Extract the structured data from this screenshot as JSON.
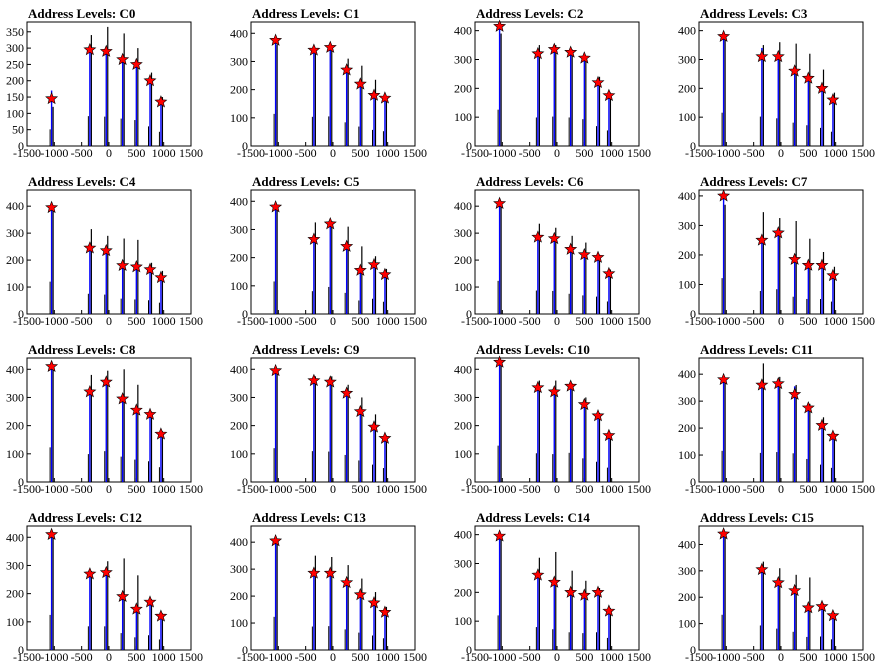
{
  "chart_data": [
    {
      "title": "Address Levels: C0",
      "type": "bar",
      "xlim": [
        -1500,
        1500
      ],
      "ylim": [
        0,
        380
      ],
      "xticks": [
        "-1500",
        "-1000",
        "-500",
        "0",
        "500",
        "1000",
        "1500"
      ],
      "yticks": [
        0,
        50,
        100,
        150,
        200,
        250,
        300,
        350
      ],
      "peaks": [
        {
          "x": -1050,
          "blue": 170,
          "black": 120,
          "marker": 145
        },
        {
          "x": -350,
          "blue": 305,
          "black": 340,
          "marker": 295
        },
        {
          "x": -50,
          "blue": 300,
          "black": 365,
          "marker": 290
        },
        {
          "x": 250,
          "blue": 280,
          "black": 345,
          "marker": 265
        },
        {
          "x": 500,
          "blue": 265,
          "black": 300,
          "marker": 250
        },
        {
          "x": 750,
          "blue": 200,
          "black": 225,
          "marker": 200
        },
        {
          "x": 950,
          "blue": 145,
          "black": 150,
          "marker": 135
        }
      ]
    },
    {
      "title": "Address Levels: C1",
      "type": "bar",
      "xlim": [
        -1500,
        1500
      ],
      "ylim": [
        0,
        440
      ],
      "xticks": [
        "-1500",
        "-1000",
        "-500",
        "0",
        "500",
        "1000",
        "1500"
      ],
      "yticks": [
        0,
        100,
        200,
        300,
        400
      ],
      "peaks": [
        {
          "x": -1050,
          "blue": 380,
          "black": 360,
          "marker": 375
        },
        {
          "x": -350,
          "blue": 345,
          "black": 330,
          "marker": 340
        },
        {
          "x": -50,
          "blue": 350,
          "black": 340,
          "marker": 350
        },
        {
          "x": 250,
          "blue": 280,
          "black": 310,
          "marker": 270
        },
        {
          "x": 500,
          "blue": 230,
          "black": 285,
          "marker": 220
        },
        {
          "x": 750,
          "blue": 190,
          "black": 235,
          "marker": 180
        },
        {
          "x": 950,
          "blue": 175,
          "black": 175,
          "marker": 170
        }
      ]
    },
    {
      "title": "Address Levels: C2",
      "type": "bar",
      "xlim": [
        -1500,
        1500
      ],
      "ylim": [
        0,
        430
      ],
      "xticks": [
        "-1500",
        "-1000",
        "-500",
        "0",
        "500",
        "1000",
        "1500"
      ],
      "yticks": [
        0,
        100,
        200,
        300,
        400
      ],
      "peaks": [
        {
          "x": -1050,
          "blue": 420,
          "black": 390,
          "marker": 415
        },
        {
          "x": -350,
          "blue": 330,
          "black": 350,
          "marker": 320
        },
        {
          "x": -50,
          "blue": 340,
          "black": 350,
          "marker": 335
        },
        {
          "x": 250,
          "blue": 330,
          "black": 335,
          "marker": 325
        },
        {
          "x": 500,
          "blue": 310,
          "black": 300,
          "marker": 305
        },
        {
          "x": 750,
          "blue": 230,
          "black": 240,
          "marker": 220
        },
        {
          "x": 950,
          "blue": 180,
          "black": 185,
          "marker": 175
        }
      ]
    },
    {
      "title": "Address Levels: C3",
      "type": "bar",
      "xlim": [
        -1500,
        1500
      ],
      "ylim": [
        0,
        430
      ],
      "xticks": [
        "-1500",
        "-1000",
        "-500",
        "0",
        "500",
        "1000",
        "1500"
      ],
      "yticks": [
        0,
        100,
        200,
        300,
        400
      ],
      "peaks": [
        {
          "x": -1050,
          "blue": 385,
          "black": 380,
          "marker": 380
        },
        {
          "x": -350,
          "blue": 340,
          "black": 350,
          "marker": 310
        },
        {
          "x": -50,
          "blue": 320,
          "black": 360,
          "marker": 310
        },
        {
          "x": 250,
          "blue": 270,
          "black": 355,
          "marker": 260
        },
        {
          "x": 500,
          "blue": 240,
          "black": 320,
          "marker": 235
        },
        {
          "x": 750,
          "blue": 210,
          "black": 265,
          "marker": 200
        },
        {
          "x": 950,
          "blue": 165,
          "black": 185,
          "marker": 160
        }
      ]
    },
    {
      "title": "Address Levels: C4",
      "type": "bar",
      "xlim": [
        -1500,
        1500
      ],
      "ylim": [
        0,
        460
      ],
      "xticks": [
        "-1500",
        "-1000",
        "-500",
        "0",
        "500",
        "1000",
        "1500"
      ],
      "yticks": [
        0,
        100,
        200,
        300,
        400
      ],
      "peaks": [
        {
          "x": -1050,
          "blue": 400,
          "black": 395,
          "marker": 395
        },
        {
          "x": -350,
          "blue": 250,
          "black": 315,
          "marker": 245
        },
        {
          "x": -50,
          "blue": 240,
          "black": 290,
          "marker": 235
        },
        {
          "x": 250,
          "blue": 190,
          "black": 280,
          "marker": 180
        },
        {
          "x": 500,
          "blue": 180,
          "black": 275,
          "marker": 175
        },
        {
          "x": 750,
          "blue": 170,
          "black": 190,
          "marker": 165
        },
        {
          "x": 950,
          "blue": 140,
          "black": 160,
          "marker": 135
        }
      ]
    },
    {
      "title": "Address Levels: C5",
      "type": "bar",
      "xlim": [
        -1500,
        1500
      ],
      "ylim": [
        0,
        440
      ],
      "xticks": [
        "-1500",
        "-1000",
        "-500",
        "0",
        "500",
        "1000",
        "1500"
      ],
      "yticks": [
        0,
        100,
        200,
        300,
        400
      ],
      "peaks": [
        {
          "x": -1050,
          "blue": 385,
          "black": 370,
          "marker": 380
        },
        {
          "x": -350,
          "blue": 270,
          "black": 325,
          "marker": 265
        },
        {
          "x": -50,
          "blue": 320,
          "black": 330,
          "marker": 320
        },
        {
          "x": 250,
          "blue": 250,
          "black": 310,
          "marker": 240
        },
        {
          "x": 500,
          "blue": 160,
          "black": 240,
          "marker": 155
        },
        {
          "x": 750,
          "blue": 180,
          "black": 205,
          "marker": 175
        },
        {
          "x": 950,
          "blue": 145,
          "black": 160,
          "marker": 140
        }
      ]
    },
    {
      "title": "Address Levels: C6",
      "type": "bar",
      "xlim": [
        -1500,
        1500
      ],
      "ylim": [
        0,
        460
      ],
      "xticks": [
        "-1500",
        "-1000",
        "-500",
        "0",
        "500",
        "1000",
        "1500"
      ],
      "yticks": [
        0,
        100,
        200,
        300,
        400
      ],
      "peaks": [
        {
          "x": -1050,
          "blue": 410,
          "black": 400,
          "marker": 410
        },
        {
          "x": -350,
          "blue": 290,
          "black": 335,
          "marker": 285
        },
        {
          "x": -50,
          "blue": 285,
          "black": 320,
          "marker": 280
        },
        {
          "x": 250,
          "blue": 250,
          "black": 290,
          "marker": 240
        },
        {
          "x": 500,
          "blue": 230,
          "black": 265,
          "marker": 220
        },
        {
          "x": 750,
          "blue": 215,
          "black": 220,
          "marker": 210
        },
        {
          "x": 950,
          "blue": 155,
          "black": 165,
          "marker": 150
        }
      ]
    },
    {
      "title": "Address Levels: C7",
      "type": "bar",
      "xlim": [
        -1500,
        1500
      ],
      "ylim": [
        0,
        420
      ],
      "xticks": [
        "-1500",
        "-1000",
        "-500",
        "0",
        "500",
        "1000",
        "1500"
      ],
      "yticks": [
        0,
        100,
        200,
        300,
        400
      ],
      "peaks": [
        {
          "x": -1050,
          "blue": 405,
          "black": 370,
          "marker": 400
        },
        {
          "x": -350,
          "blue": 260,
          "black": 345,
          "marker": 250
        },
        {
          "x": -50,
          "blue": 280,
          "black": 325,
          "marker": 275
        },
        {
          "x": 250,
          "blue": 195,
          "black": 315,
          "marker": 185
        },
        {
          "x": 500,
          "blue": 170,
          "black": 255,
          "marker": 165
        },
        {
          "x": 750,
          "blue": 170,
          "black": 210,
          "marker": 165
        },
        {
          "x": 950,
          "blue": 140,
          "black": 160,
          "marker": 130
        }
      ]
    },
    {
      "title": "Address Levels: C8",
      "type": "bar",
      "xlim": [
        -1500,
        1500
      ],
      "ylim": [
        0,
        440
      ],
      "xticks": [
        "-1500",
        "-1000",
        "-500",
        "0",
        "500",
        "1000",
        "1500"
      ],
      "yticks": [
        0,
        100,
        200,
        300,
        400
      ],
      "peaks": [
        {
          "x": -1050,
          "blue": 410,
          "black": 400,
          "marker": 410
        },
        {
          "x": -350,
          "blue": 330,
          "black": 380,
          "marker": 320
        },
        {
          "x": -50,
          "blue": 365,
          "black": 395,
          "marker": 355
        },
        {
          "x": 250,
          "blue": 300,
          "black": 400,
          "marker": 295
        },
        {
          "x": 500,
          "blue": 265,
          "black": 345,
          "marker": 255
        },
        {
          "x": 750,
          "blue": 245,
          "black": 250,
          "marker": 240
        },
        {
          "x": 950,
          "blue": 175,
          "black": 180,
          "marker": 170
        }
      ]
    },
    {
      "title": "Address Levels: C9",
      "type": "bar",
      "xlim": [
        -1500,
        1500
      ],
      "ylim": [
        0,
        440
      ],
      "xticks": [
        "-1500",
        "-1000",
        "-500",
        "0",
        "500",
        "1000",
        "1500"
      ],
      "yticks": [
        0,
        100,
        200,
        300,
        400
      ],
      "peaks": [
        {
          "x": -1050,
          "blue": 400,
          "black": 390,
          "marker": 395
        },
        {
          "x": -350,
          "blue": 365,
          "black": 375,
          "marker": 360
        },
        {
          "x": -50,
          "blue": 360,
          "black": 375,
          "marker": 355
        },
        {
          "x": 250,
          "blue": 320,
          "black": 345,
          "marker": 315
        },
        {
          "x": 500,
          "blue": 255,
          "black": 300,
          "marker": 250
        },
        {
          "x": 750,
          "blue": 205,
          "black": 240,
          "marker": 195
        },
        {
          "x": 950,
          "blue": 165,
          "black": 165,
          "marker": 155
        }
      ]
    },
    {
      "title": "Address Levels: C10",
      "type": "bar",
      "xlim": [
        -1500,
        1500
      ],
      "ylim": [
        0,
        440
      ],
      "xticks": [
        "-1500",
        "-1000",
        "-500",
        "0",
        "500",
        "1000",
        "1500"
      ],
      "yticks": [
        0,
        100,
        200,
        300,
        400
      ],
      "peaks": [
        {
          "x": -1050,
          "blue": 430,
          "black": 420,
          "marker": 425
        },
        {
          "x": -350,
          "blue": 340,
          "black": 360,
          "marker": 335
        },
        {
          "x": -50,
          "blue": 330,
          "black": 360,
          "marker": 320
        },
        {
          "x": 250,
          "blue": 345,
          "black": 350,
          "marker": 340
        },
        {
          "x": 500,
          "blue": 280,
          "black": 300,
          "marker": 275
        },
        {
          "x": 750,
          "blue": 240,
          "black": 245,
          "marker": 235
        },
        {
          "x": 950,
          "blue": 170,
          "black": 170,
          "marker": 165
        }
      ]
    },
    {
      "title": "Address Levels: C11",
      "type": "bar",
      "xlim": [
        -1500,
        1500
      ],
      "ylim": [
        0,
        460
      ],
      "xticks": [
        "-1500",
        "-1000",
        "-500",
        "0",
        "500",
        "1000",
        "1500"
      ],
      "yticks": [
        0,
        100,
        200,
        300,
        400
      ],
      "peaks": [
        {
          "x": -1050,
          "blue": 385,
          "black": 380,
          "marker": 380
        },
        {
          "x": -350,
          "blue": 360,
          "black": 440,
          "marker": 360
        },
        {
          "x": -50,
          "blue": 370,
          "black": 390,
          "marker": 365
        },
        {
          "x": 250,
          "blue": 355,
          "black": 360,
          "marker": 325
        },
        {
          "x": 500,
          "blue": 285,
          "black": 290,
          "marker": 275
        },
        {
          "x": 750,
          "blue": 215,
          "black": 240,
          "marker": 210
        },
        {
          "x": 950,
          "blue": 175,
          "black": 180,
          "marker": 170
        }
      ]
    },
    {
      "title": "Address Levels: C12",
      "type": "bar",
      "xlim": [
        -1500,
        1500
      ],
      "ylim": [
        0,
        440
      ],
      "xticks": [
        "-1500",
        "-1000",
        "-500",
        "0",
        "500",
        "1000",
        "1500"
      ],
      "yticks": [
        0,
        100,
        200,
        300,
        400
      ],
      "peaks": [
        {
          "x": -1050,
          "blue": 415,
          "black": 405,
          "marker": 410
        },
        {
          "x": -350,
          "blue": 280,
          "black": 280,
          "marker": 270
        },
        {
          "x": -50,
          "blue": 280,
          "black": 315,
          "marker": 275
        },
        {
          "x": 250,
          "blue": 200,
          "black": 325,
          "marker": 190
        },
        {
          "x": 500,
          "blue": 150,
          "black": 265,
          "marker": 145
        },
        {
          "x": 750,
          "blue": 175,
          "black": 180,
          "marker": 170
        },
        {
          "x": 950,
          "blue": 125,
          "black": 130,
          "marker": 120
        }
      ]
    },
    {
      "title": "Address Levels: C13",
      "type": "bar",
      "xlim": [
        -1500,
        1500
      ],
      "ylim": [
        0,
        460
      ],
      "xticks": [
        "-1500",
        "-1000",
        "-500",
        "0",
        "500",
        "1000",
        "1500"
      ],
      "yticks": [
        0,
        100,
        200,
        300,
        400
      ],
      "peaks": [
        {
          "x": -1050,
          "blue": 410,
          "black": 400,
          "marker": 405
        },
        {
          "x": -350,
          "blue": 290,
          "black": 350,
          "marker": 285
        },
        {
          "x": -50,
          "blue": 295,
          "black": 345,
          "marker": 285
        },
        {
          "x": 250,
          "blue": 255,
          "black": 315,
          "marker": 250
        },
        {
          "x": 500,
          "blue": 215,
          "black": 265,
          "marker": 205
        },
        {
          "x": 750,
          "blue": 180,
          "black": 215,
          "marker": 175
        },
        {
          "x": 950,
          "blue": 145,
          "black": 160,
          "marker": 140
        }
      ]
    },
    {
      "title": "Address Levels: C14",
      "type": "bar",
      "xlim": [
        -1500,
        1500
      ],
      "ylim": [
        0,
        430
      ],
      "xticks": [
        "-1500",
        "-1000",
        "-500",
        "0",
        "500",
        "1000",
        "1500"
      ],
      "yticks": [
        0,
        100,
        200,
        300,
        400
      ],
      "peaks": [
        {
          "x": -1050,
          "blue": 400,
          "black": 395,
          "marker": 395
        },
        {
          "x": -350,
          "blue": 265,
          "black": 320,
          "marker": 260
        },
        {
          "x": -50,
          "blue": 240,
          "black": 340,
          "marker": 235
        },
        {
          "x": 250,
          "blue": 205,
          "black": 275,
          "marker": 200
        },
        {
          "x": 500,
          "blue": 195,
          "black": 240,
          "marker": 190
        },
        {
          "x": 750,
          "blue": 205,
          "black": 215,
          "marker": 200
        },
        {
          "x": 950,
          "blue": 140,
          "black": 145,
          "marker": 135
        }
      ]
    },
    {
      "title": "Address Levels: C15",
      "type": "bar",
      "xlim": [
        -1500,
        1500
      ],
      "ylim": [
        0,
        470
      ],
      "xticks": [
        "-1500",
        "-1000",
        "-500",
        "0",
        "500",
        "1000",
        "1500"
      ],
      "yticks": [
        0,
        100,
        200,
        300,
        400
      ],
      "peaks": [
        {
          "x": -1050,
          "blue": 445,
          "black": 440,
          "marker": 440
        },
        {
          "x": -350,
          "blue": 310,
          "black": 335,
          "marker": 305
        },
        {
          "x": -50,
          "blue": 270,
          "black": 310,
          "marker": 255
        },
        {
          "x": 250,
          "blue": 230,
          "black": 285,
          "marker": 225
        },
        {
          "x": 500,
          "blue": 165,
          "black": 275,
          "marker": 160
        },
        {
          "x": 750,
          "blue": 170,
          "black": 175,
          "marker": 165
        },
        {
          "x": 950,
          "blue": 135,
          "black": 140,
          "marker": 130
        }
      ]
    }
  ],
  "colors": {
    "series_a": "#0000ff",
    "series_b": "#000000",
    "marker_fill": "#ff0000",
    "marker_stroke": "#000000"
  }
}
